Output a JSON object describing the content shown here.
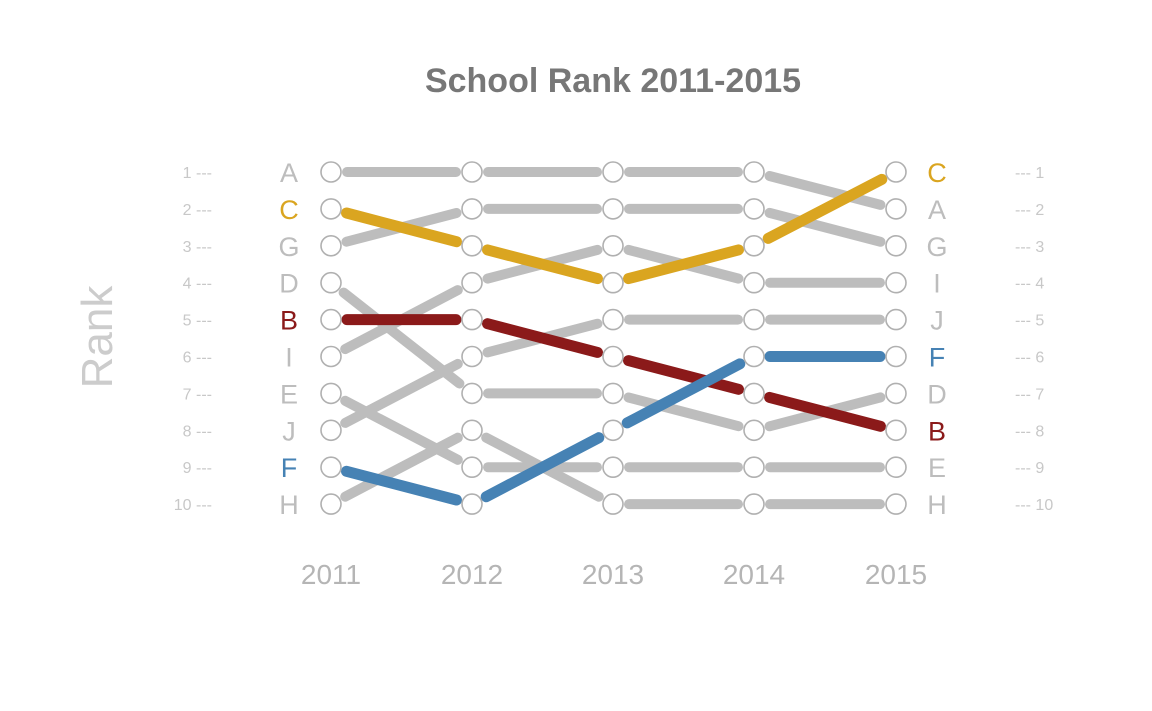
{
  "chart_data": {
    "type": "line",
    "title": "School Rank 2011-2015",
    "ylabel": "Rank",
    "x": [
      "2011",
      "2012",
      "2013",
      "2014",
      "2015"
    ],
    "ranks": [
      1,
      2,
      3,
      4,
      5,
      6,
      7,
      8,
      9,
      10
    ],
    "rank_labels_left": [
      "1 ---",
      "2 ---",
      "3 ---",
      "4 ---",
      "5 ---",
      "6 ---",
      "7 ---",
      "8 ---",
      "9 ---",
      "10 ---"
    ],
    "rank_labels_right": [
      "--- 1",
      "--- 2",
      "--- 3",
      "--- 4",
      "--- 5",
      "--- 6",
      "--- 7",
      "--- 8",
      "--- 9",
      "--- 10"
    ],
    "series": [
      {
        "name": "A",
        "values": [
          1,
          1,
          1,
          1,
          2
        ],
        "color": "#bdbdbd",
        "highlight": false
      },
      {
        "name": "C",
        "values": [
          2,
          3,
          4,
          3,
          1
        ],
        "color": "#daa520",
        "highlight": true
      },
      {
        "name": "G",
        "values": [
          3,
          2,
          2,
          2,
          3
        ],
        "color": "#bdbdbd",
        "highlight": false
      },
      {
        "name": "D",
        "values": [
          4,
          7,
          7,
          8,
          7
        ],
        "color": "#bdbdbd",
        "highlight": false
      },
      {
        "name": "B",
        "values": [
          5,
          5,
          6,
          7,
          8
        ],
        "color": "#8b1a1a",
        "highlight": true
      },
      {
        "name": "I",
        "values": [
          6,
          4,
          3,
          4,
          4
        ],
        "color": "#bdbdbd",
        "highlight": false
      },
      {
        "name": "E",
        "values": [
          7,
          9,
          9,
          9,
          9
        ],
        "color": "#bdbdbd",
        "highlight": false
      },
      {
        "name": "J",
        "values": [
          8,
          6,
          5,
          5,
          5
        ],
        "color": "#bdbdbd",
        "highlight": false
      },
      {
        "name": "F",
        "values": [
          9,
          10,
          8,
          6,
          6
        ],
        "color": "#4682b4",
        "highlight": true
      },
      {
        "name": "H",
        "values": [
          10,
          8,
          10,
          10,
          10
        ],
        "color": "#bdbdbd",
        "highlight": false
      }
    ],
    "marker_color": "#b0b0b0",
    "grid": false,
    "legend": "none"
  }
}
